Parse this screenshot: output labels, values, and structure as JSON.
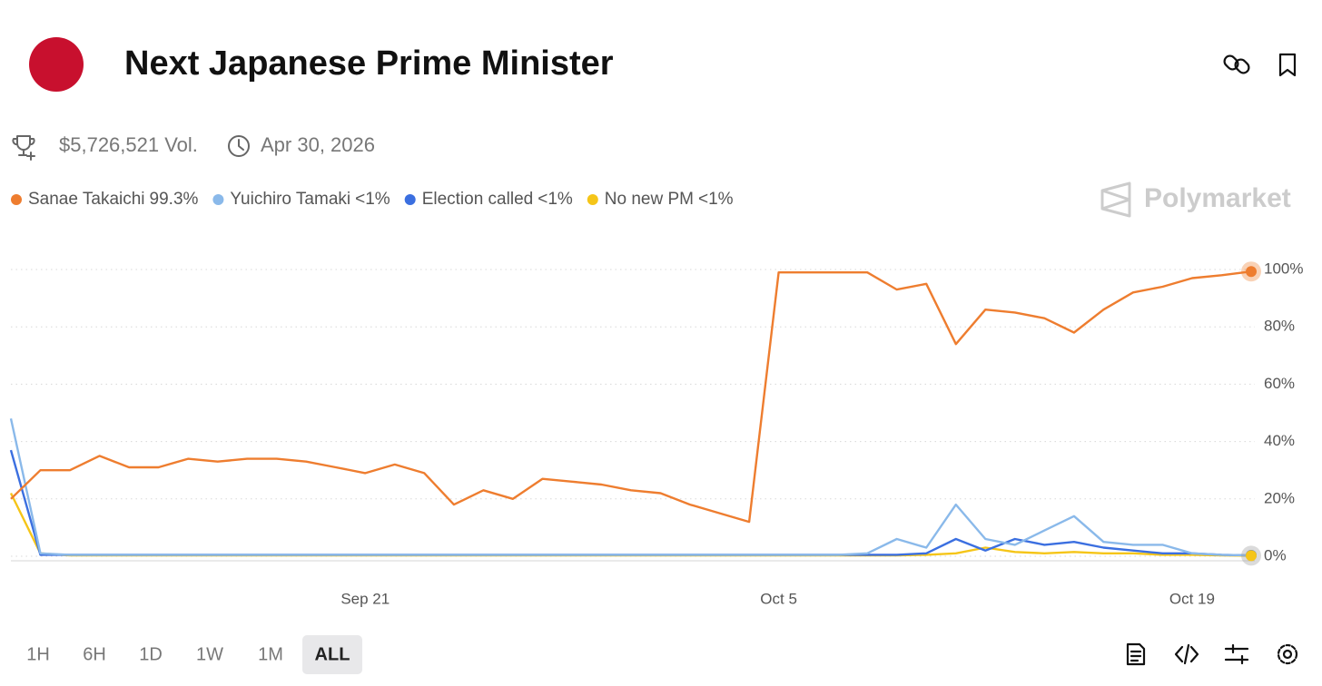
{
  "header": {
    "title": "Next Japanese Prime Minister",
    "volume": "$5,726,521 Vol.",
    "end_date": "Apr 30, 2026",
    "watermark": "Polymarket"
  },
  "chart_data": {
    "type": "line",
    "x": [
      "Sep 9",
      "Sep 10",
      "Sep 11",
      "Sep 12",
      "Sep 13",
      "Sep 14",
      "Sep 15",
      "Sep 16",
      "Sep 17",
      "Sep 18",
      "Sep 19",
      "Sep 20",
      "Sep 21",
      "Sep 22",
      "Sep 23",
      "Sep 24",
      "Sep 25",
      "Sep 26",
      "Sep 27",
      "Sep 28",
      "Sep 29",
      "Sep 30",
      "Oct 1",
      "Oct 2",
      "Oct 3",
      "Oct 4",
      "Oct 5",
      "Oct 6",
      "Oct 7",
      "Oct 8",
      "Oct 9",
      "Oct 10",
      "Oct 11",
      "Oct 12",
      "Oct 13",
      "Oct 14",
      "Oct 15",
      "Oct 16",
      "Oct 17",
      "Oct 18",
      "Oct 19",
      "Oct 20",
      "Oct 21"
    ],
    "xticks": [
      "Sep 21",
      "Oct 5",
      "Oct 19"
    ],
    "series": [
      {
        "name": "Sanae Takaichi",
        "current": "99.3%",
        "color": "#ee7d2f",
        "values": [
          20,
          30,
          30,
          35,
          31,
          31,
          34,
          33,
          34,
          34,
          33,
          31,
          29,
          32,
          29,
          18,
          23,
          20,
          27,
          26,
          25,
          23,
          22,
          18,
          15,
          12,
          99,
          99,
          99,
          99,
          93,
          95,
          74,
          86,
          85,
          83,
          78,
          86,
          92,
          94,
          97,
          98,
          99.3
        ]
      },
      {
        "name": "Yuichiro Tamaki",
        "current": "<1%",
        "color": "#8ab9ea",
        "values": [
          48,
          1,
          0.5,
          0.5,
          0.5,
          0.5,
          0.5,
          0.5,
          0.5,
          0.5,
          0.5,
          0.5,
          0.5,
          0.5,
          0.5,
          0.5,
          0.5,
          0.5,
          0.5,
          0.5,
          0.5,
          0.5,
          0.5,
          0.5,
          0.5,
          0.5,
          0.5,
          0.5,
          0.5,
          1,
          6,
          3,
          18,
          6,
          4,
          9,
          14,
          5,
          4,
          4,
          1,
          0.5,
          0.3
        ]
      },
      {
        "name": "Election called",
        "current": "<1%",
        "color": "#3b6fe0",
        "values": [
          37,
          0.5,
          0.5,
          0.5,
          0.5,
          0.5,
          0.5,
          0.5,
          0.5,
          0.5,
          0.5,
          0.5,
          0.5,
          0.5,
          0.5,
          0.5,
          0.5,
          0.5,
          0.5,
          0.5,
          0.5,
          0.5,
          0.5,
          0.5,
          0.5,
          0.5,
          0.5,
          0.5,
          0.5,
          0.5,
          0.5,
          1,
          6,
          2,
          6,
          4,
          5,
          3,
          2,
          1,
          1,
          0.5,
          0.3
        ]
      },
      {
        "name": "No new PM",
        "current": "<1%",
        "color": "#f5c518",
        "values": [
          22,
          1,
          0.3,
          0.3,
          0.3,
          0.3,
          0.3,
          0.3,
          0.3,
          0.3,
          0.3,
          0.3,
          0.3,
          0.3,
          0.3,
          0.3,
          0.3,
          0.3,
          0.3,
          0.3,
          0.3,
          0.3,
          0.3,
          0.3,
          0.3,
          0.3,
          0.3,
          0.3,
          0.3,
          0.3,
          0.3,
          0.5,
          1,
          3,
          1.5,
          1,
          1.5,
          1,
          1,
          0.5,
          0.5,
          0.3,
          0.2
        ]
      }
    ],
    "ylim": [
      0,
      100
    ],
    "yticks": [
      {
        "value": 0,
        "label": "0%"
      },
      {
        "value": 20,
        "label": "20%"
      },
      {
        "value": 40,
        "label": "40%"
      },
      {
        "value": 60,
        "label": "60%"
      },
      {
        "value": 80,
        "label": "80%"
      },
      {
        "value": 100,
        "label": "100%"
      }
    ],
    "grid": true
  },
  "ranges": [
    "1H",
    "6H",
    "1D",
    "1W",
    "1M",
    "ALL"
  ],
  "selected_range": "ALL"
}
